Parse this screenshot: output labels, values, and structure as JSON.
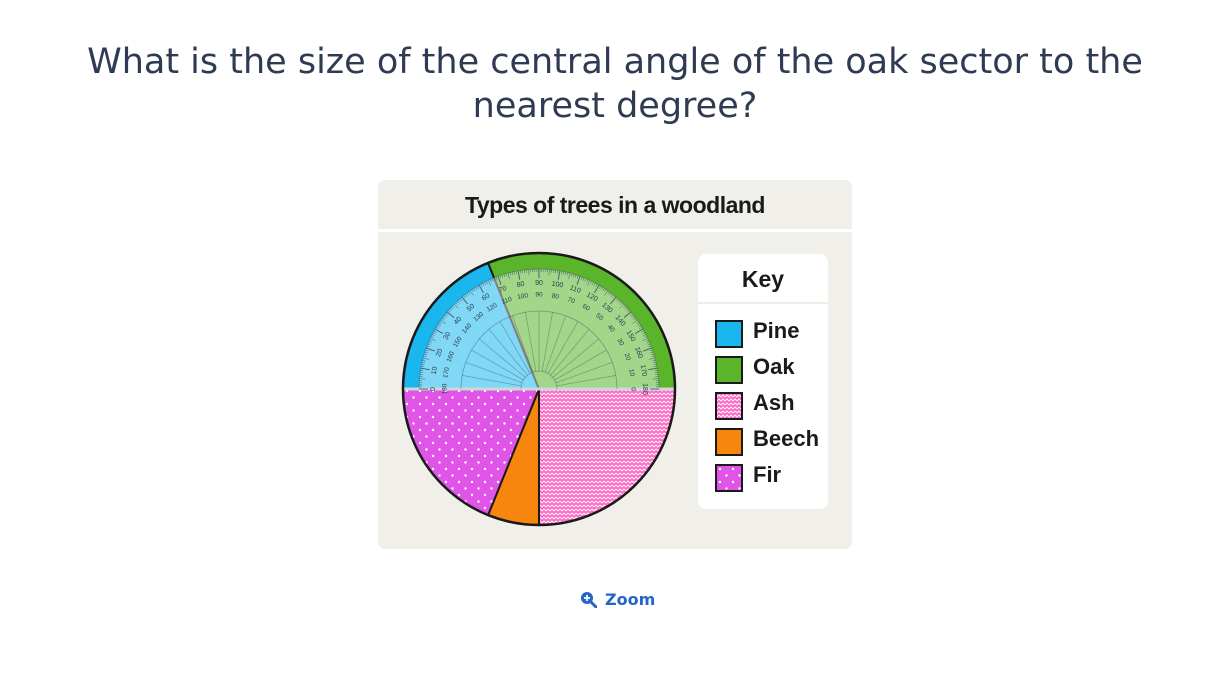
{
  "question": "What is the size of the central angle of the oak sector to the nearest degree?",
  "zoom_label": "Zoom",
  "chart_data": {
    "type": "pie",
    "title": "Types of trees in a woodland",
    "legend_title": "Key",
    "legend_position": "right",
    "overlay": "protractor",
    "slices": [
      {
        "name": "Pine",
        "color": "#1ab6ee",
        "pattern": "solid",
        "start_deg": 0,
        "end_deg": 68
      },
      {
        "name": "Oak",
        "color": "#5ab52a",
        "pattern": "solid",
        "start_deg": 68,
        "end_deg": 180
      },
      {
        "name": "Ash",
        "color": "#ff69c8",
        "pattern": "zigzag",
        "start_deg": 180,
        "end_deg": 270
      },
      {
        "name": "Beech",
        "color": "#f7860f",
        "pattern": "solid",
        "start_deg": 270,
        "end_deg": 292
      },
      {
        "name": "Fir",
        "color": "#e055e8",
        "pattern": "dots",
        "start_deg": 292,
        "end_deg": 360
      }
    ],
    "protractor": {
      "outer_labels": [
        "0",
        "10",
        "20",
        "30",
        "40",
        "50",
        "60",
        "70",
        "80",
        "90",
        "100",
        "110",
        "120",
        "130",
        "140",
        "150",
        "160",
        "170",
        "180"
      ],
      "inner_labels": [
        "180",
        "170",
        "160",
        "150",
        "140",
        "130",
        "120",
        "110",
        "100",
        "90",
        "80",
        "70",
        "60",
        "50",
        "40",
        "30",
        "20",
        "10",
        "0"
      ]
    }
  }
}
